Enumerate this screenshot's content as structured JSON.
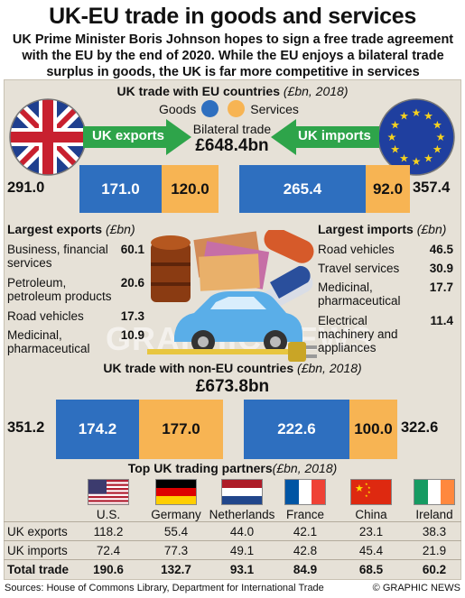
{
  "title": "UK-EU trade in goods and services",
  "subtitle": "UK Prime Minister Boris Johnson hopes to sign a free trade agreement with the EU by the end of 2020. While the EU enjoys a bilateral trade surplus in goods, the UK is far more competitive in services",
  "eu_section": {
    "heading": "UK trade with EU countries",
    "unit": "(£bn, 2018)",
    "legend_goods": "Goods",
    "legend_services": "Services",
    "exports_label": "UK exports",
    "imports_label": "UK imports",
    "bilateral_label": "Bilateral trade",
    "bilateral_value": "£648.4bn",
    "exports_total": "291.0",
    "exports_goods": "171.0",
    "exports_services": "120.0",
    "imports_goods": "265.4",
    "imports_services": "92.0",
    "imports_total": "357.4"
  },
  "largest_exports": {
    "heading": "Largest exports",
    "unit": "(£bn)",
    "items": [
      {
        "label": "Business, financial services",
        "value": "60.1"
      },
      {
        "label": "Petroleum, petroleum products",
        "value": "20.6"
      },
      {
        "label": "Road vehicles",
        "value": "17.3"
      },
      {
        "label": "Medicinal, pharmaceutical",
        "value": "10.9"
      }
    ]
  },
  "largest_imports": {
    "heading": "Largest imports",
    "unit": "(£bn)",
    "items": [
      {
        "label": "Road vehicles",
        "value": "46.5"
      },
      {
        "label": "Travel services",
        "value": "30.9"
      },
      {
        "label": "Medicinal, pharmaceutical",
        "value": "17.7"
      },
      {
        "label": "Electrical machinery and appliances",
        "value": "11.4"
      }
    ]
  },
  "non_eu_section": {
    "heading": "UK trade with non-EU countries",
    "unit": "(£bn, 2018)",
    "total_value": "£673.8bn",
    "exports_total": "351.2",
    "exports_goods": "174.2",
    "exports_services": "177.0",
    "imports_goods": "222.6",
    "imports_services": "100.0",
    "imports_total": "322.6"
  },
  "partners": {
    "heading": "Top UK trading partners",
    "unit": "(£bn, 2018)",
    "row_labels": [
      "UK exports",
      "UK imports",
      "Total trade"
    ],
    "countries": [
      {
        "name": "U.S.",
        "exports": "118.2",
        "imports": "72.4",
        "total": "190.6",
        "flag": "us-flag"
      },
      {
        "name": "Germany",
        "exports": "55.4",
        "imports": "77.3",
        "total": "132.7",
        "flag": "germany-flag"
      },
      {
        "name": "Netherlands",
        "exports": "44.0",
        "imports": "49.1",
        "total": "93.1",
        "flag": "netherlands-flag"
      },
      {
        "name": "France",
        "exports": "42.1",
        "imports": "42.8",
        "total": "84.9",
        "flag": "france-flag"
      },
      {
        "name": "China",
        "exports": "23.1",
        "imports": "45.4",
        "total": "68.5",
        "flag": "china-flag"
      },
      {
        "name": "Ireland",
        "exports": "38.3",
        "imports": "21.9",
        "total": "60.2",
        "flag": "ireland-flag"
      }
    ]
  },
  "footer": {
    "sources": "Sources: House of Commons Library, Department for International Trade",
    "credit": "© GRAPHIC NEWS"
  },
  "watermark": "GRAPHIC NEWS",
  "colors": {
    "goods": "#2e6fbf",
    "services": "#f7b453",
    "arrow": "#2ea44a",
    "panel": "#e6e1d7"
  },
  "chart_data": [
    {
      "type": "bar",
      "title": "UK trade with EU countries",
      "categories": [
        "UK exports",
        "UK imports"
      ],
      "series": [
        {
          "name": "Goods",
          "values": [
            171.0,
            265.4
          ]
        },
        {
          "name": "Services",
          "values": [
            120.0,
            92.0
          ]
        }
      ],
      "totals": [
        291.0,
        357.4
      ],
      "bilateral_trade": 648.4
    },
    {
      "type": "bar",
      "title": "UK trade with non-EU countries",
      "categories": [
        "UK exports",
        "UK imports"
      ],
      "series": [
        {
          "name": "Goods",
          "values": [
            174.2,
            222.6
          ]
        },
        {
          "name": "Services",
          "values": [
            177.0,
            100.0
          ]
        }
      ],
      "totals": [
        351.2,
        322.6
      ],
      "total_trade": 673.8
    },
    {
      "type": "table",
      "title": "Top UK trading partners",
      "columns": [
        "U.S.",
        "Germany",
        "Netherlands",
        "France",
        "China",
        "Ireland"
      ],
      "rows": [
        {
          "name": "UK exports",
          "values": [
            118.2,
            55.4,
            44.0,
            42.1,
            23.1,
            38.3
          ]
        },
        {
          "name": "UK imports",
          "values": [
            72.4,
            77.3,
            49.1,
            42.8,
            45.4,
            21.9
          ]
        },
        {
          "name": "Total trade",
          "values": [
            190.6,
            132.7,
            93.1,
            84.9,
            68.5,
            60.2
          ]
        }
      ]
    }
  ]
}
